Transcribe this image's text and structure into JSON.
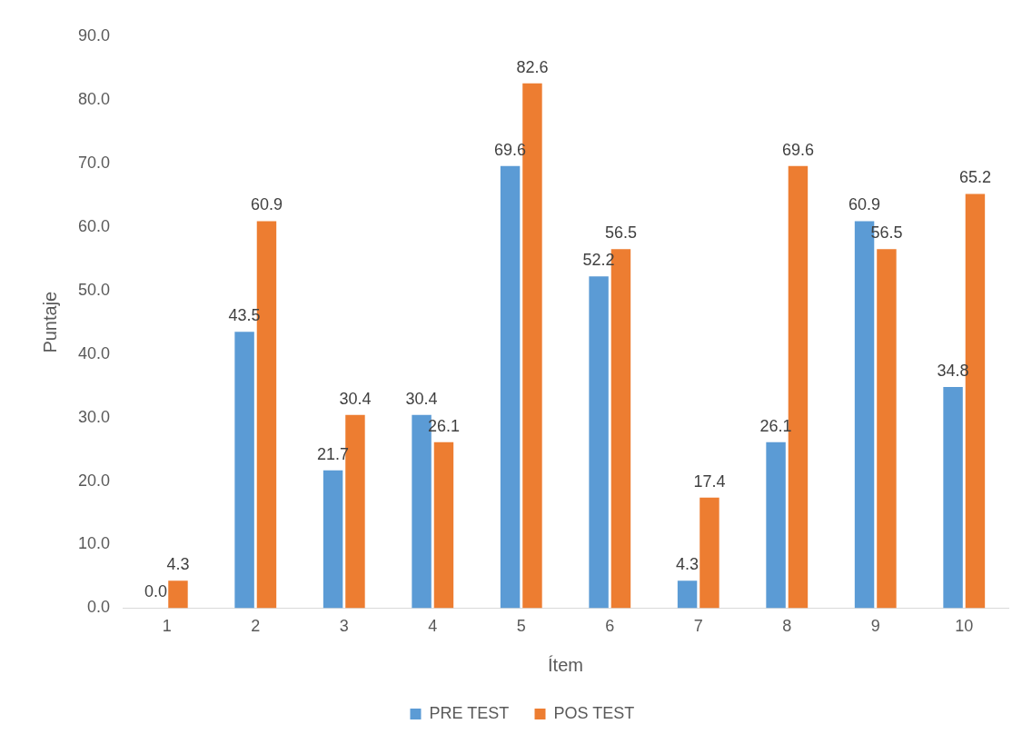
{
  "chart_data": {
    "type": "bar",
    "xlabel": "Ítem",
    "ylabel": "Puntaje",
    "categories": [
      "1",
      "2",
      "3",
      "4",
      "5",
      "6",
      "7",
      "8",
      "9",
      "10"
    ],
    "series": [
      {
        "name": "PRE TEST",
        "color": "#5b9bd5",
        "values": [
          0.0,
          43.5,
          21.7,
          30.4,
          69.6,
          52.2,
          4.3,
          26.1,
          60.9,
          34.8
        ],
        "value_labels": [
          "0.0",
          "43.5",
          "21.7",
          "30.4",
          "69.6",
          "52.2",
          "4.3",
          "26.1",
          "60.9",
          "34.8"
        ]
      },
      {
        "name": "POS TEST",
        "color": "#ed7d31",
        "values": [
          4.3,
          60.9,
          30.4,
          26.1,
          82.6,
          56.5,
          17.4,
          69.6,
          56.5,
          65.2
        ],
        "value_labels": [
          "4.3",
          "60.9",
          "30.4",
          "26.1",
          "82.6",
          "56.5",
          "17.4",
          "69.6",
          "56.5",
          "65.2"
        ]
      }
    ],
    "ylim": [
      0,
      90
    ],
    "yticks": [
      {
        "value": 0,
        "label": "0.0"
      },
      {
        "value": 10,
        "label": "10.0"
      },
      {
        "value": 20,
        "label": "20.0"
      },
      {
        "value": 30,
        "label": "30.0"
      },
      {
        "value": 40,
        "label": "40.0"
      },
      {
        "value": 50,
        "label": "50.0"
      },
      {
        "value": 60,
        "label": "60.0"
      },
      {
        "value": 70,
        "label": "70.0"
      },
      {
        "value": 80,
        "label": "80.0"
      },
      {
        "value": 90,
        "label": "90.0"
      }
    ],
    "grid": false,
    "legend": "bottom"
  }
}
